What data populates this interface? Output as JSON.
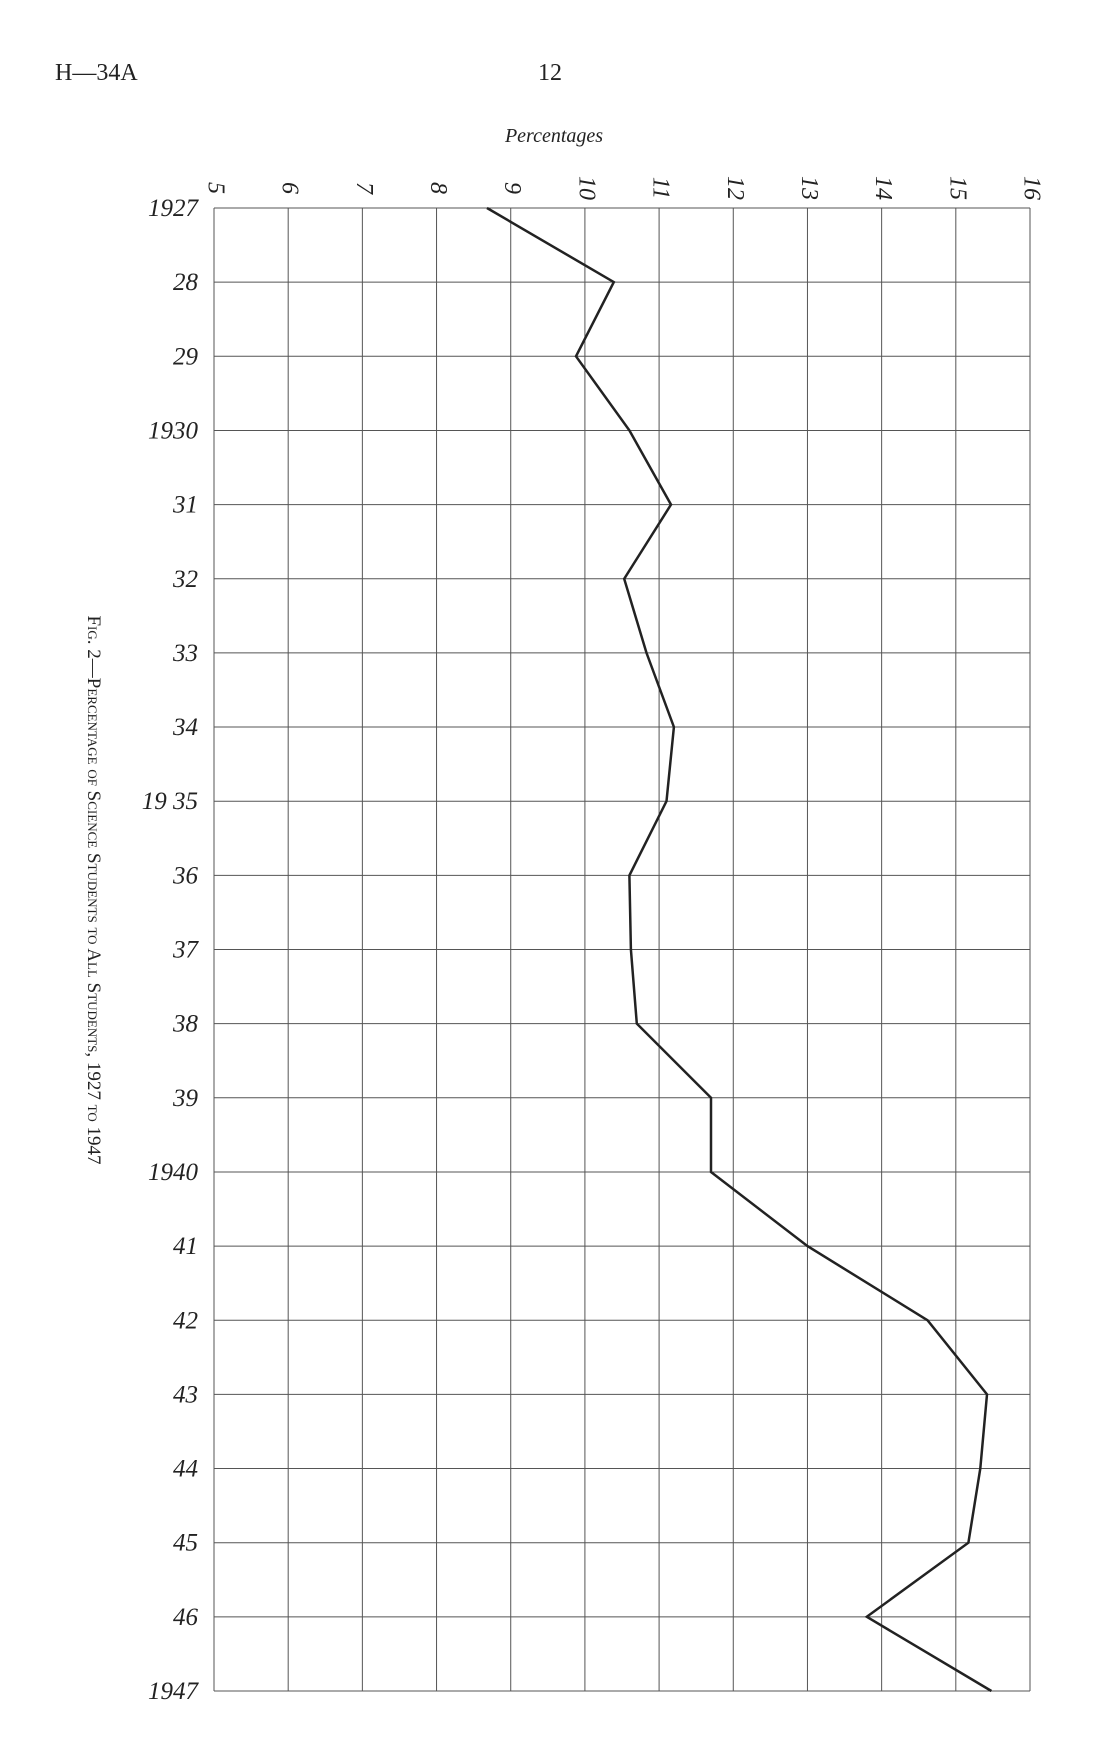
{
  "header": {
    "code": "H—34A",
    "page": "12"
  },
  "chart_data": {
    "type": "line",
    "orientation": "horizontal",
    "title": "Fig. 2—Percentage of Science Students to All Students, 1927 to 1947",
    "x_label": "Percentages",
    "categories": [
      "1927",
      "28",
      "29",
      "1930",
      "31",
      "32",
      "33",
      "34",
      "19 35",
      "36",
      "37",
      "38",
      "39",
      "1940",
      "41",
      "42",
      "43",
      "44",
      "45",
      "46",
      "1947"
    ],
    "values": [
      8.68,
      10.39,
      9.88,
      10.6,
      11.16,
      10.53,
      10.83,
      11.2,
      11.1,
      10.6,
      10.62,
      10.7,
      11.7,
      11.7,
      13.0,
      14.62,
      15.42,
      15.33,
      15.17,
      13.8,
      15.48
    ],
    "color": "#222222",
    "xlim": [
      5,
      16
    ],
    "xticks": [
      5,
      6,
      7,
      8,
      9,
      10,
      11,
      12,
      13,
      14,
      15,
      16
    ],
    "grid": true
  }
}
